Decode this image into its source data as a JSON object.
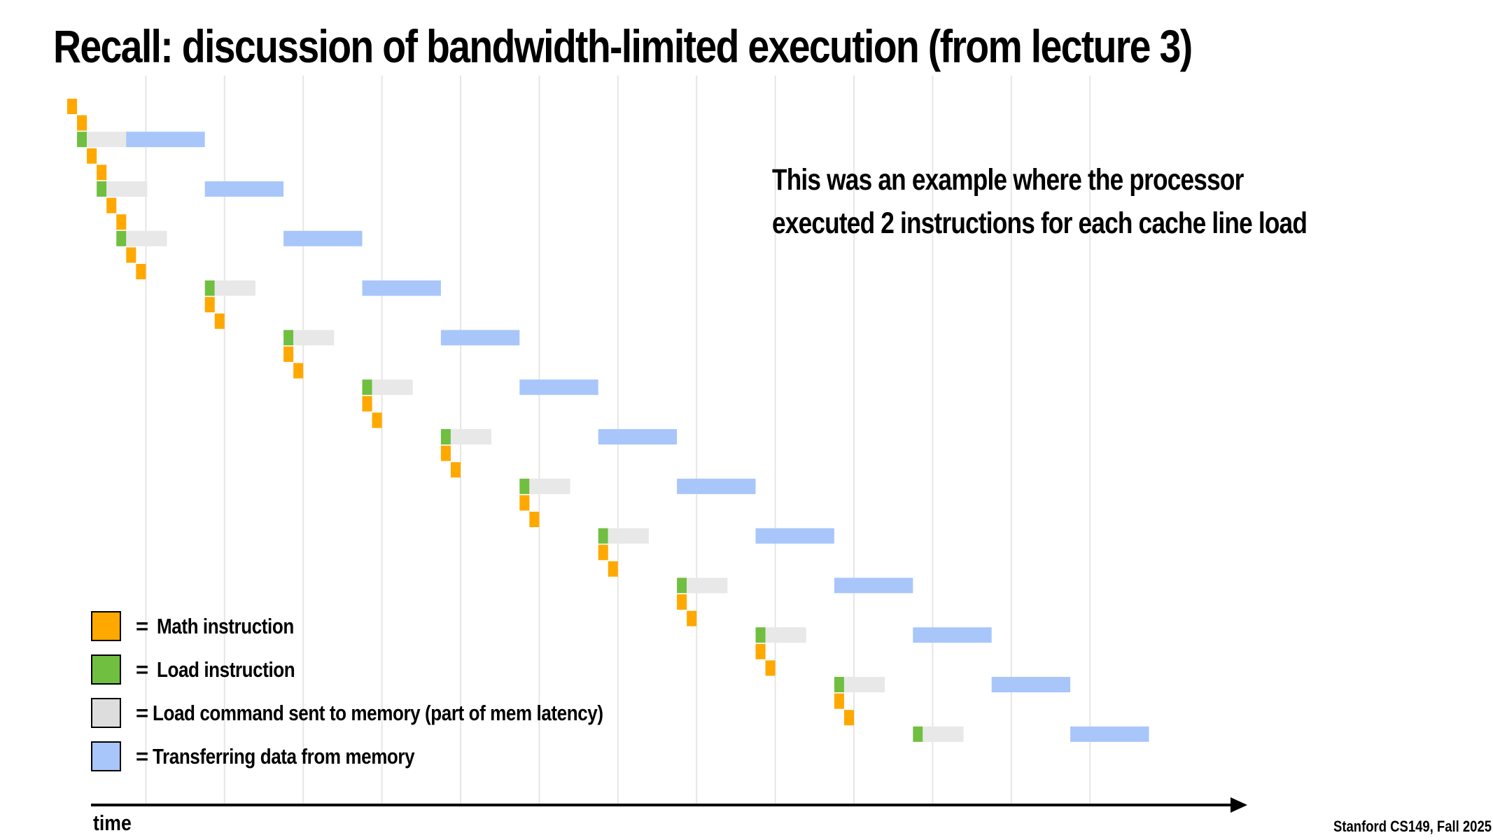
{
  "slide": {
    "title": "Recall: discussion of bandwidth-limited execution (from lecture 3)",
    "callout_line1": "This was an example where the processor",
    "callout_line2": "executed 2 instructions for each cache line load",
    "footer": "Stanford CS149, Fall 2025"
  },
  "legend": {
    "items": [
      {
        "name": "math",
        "label": "Math instruction",
        "color": "#ffa800",
        "eq": "="
      },
      {
        "name": "load",
        "label": "Load instruction",
        "color": "#70bf41",
        "eq": "="
      },
      {
        "name": "command",
        "label": "Load command sent to memory (part of mem latency)",
        "color": "#dddddd",
        "eq": "="
      },
      {
        "name": "transfer",
        "label": "Transferring data from memory",
        "color": "#a8c6fa",
        "eq": "="
      }
    ]
  },
  "timeline": {
    "axis_label": "time",
    "unit_note": "time measured in instruction issue slots; each memory transfer lasts 8 slots and transfers are serialized (bandwidth limited)",
    "instruction_slot": 1,
    "command_latency": 4,
    "transfer_duration": 8,
    "gridline_interval": 8,
    "colors": {
      "math": "#ffa800",
      "load": "#70bf41",
      "command": "#e8e8e8",
      "transfer": "#a8c6fa",
      "grid": "#e6e6e6",
      "axis": "#000000"
    },
    "rows": [
      {
        "type": "math",
        "start": 0
      },
      {
        "type": "math",
        "start": 1
      },
      {
        "type": "load",
        "start": 1,
        "command_start": 2,
        "transfer_start": 6
      },
      {
        "type": "math",
        "start": 2
      },
      {
        "type": "math",
        "start": 3
      },
      {
        "type": "load",
        "start": 3,
        "command_start": 4,
        "transfer_start": 14
      },
      {
        "type": "math",
        "start": 4
      },
      {
        "type": "math",
        "start": 5
      },
      {
        "type": "load",
        "start": 5,
        "command_start": 6,
        "transfer_start": 22
      },
      {
        "type": "math",
        "start": 6
      },
      {
        "type": "math",
        "start": 7
      },
      {
        "type": "load",
        "start": 14,
        "command_start": 15,
        "transfer_start": 30
      },
      {
        "type": "math",
        "start": 14
      },
      {
        "type": "math",
        "start": 15
      },
      {
        "type": "load",
        "start": 22,
        "command_start": 23,
        "transfer_start": 38
      },
      {
        "type": "math",
        "start": 22
      },
      {
        "type": "math",
        "start": 23
      },
      {
        "type": "load",
        "start": 30,
        "command_start": 31,
        "transfer_start": 46
      },
      {
        "type": "math",
        "start": 30
      },
      {
        "type": "math",
        "start": 31
      },
      {
        "type": "load",
        "start": 38,
        "command_start": 39,
        "transfer_start": 54
      },
      {
        "type": "math",
        "start": 38
      },
      {
        "type": "math",
        "start": 39
      },
      {
        "type": "load",
        "start": 46,
        "command_start": 47,
        "transfer_start": 62
      },
      {
        "type": "math",
        "start": 46
      },
      {
        "type": "math",
        "start": 47
      },
      {
        "type": "load",
        "start": 54,
        "command_start": 55,
        "transfer_start": 70
      },
      {
        "type": "math",
        "start": 54
      },
      {
        "type": "math",
        "start": 55
      },
      {
        "type": "load",
        "start": 62,
        "command_start": 63,
        "transfer_start": 78
      },
      {
        "type": "math",
        "start": 62
      },
      {
        "type": "math",
        "start": 63
      },
      {
        "type": "load",
        "start": 70,
        "command_start": 71,
        "transfer_start": 86
      },
      {
        "type": "math",
        "start": 70
      },
      {
        "type": "math",
        "start": 71
      },
      {
        "type": "load",
        "start": 78,
        "command_start": 79,
        "transfer_start": 94
      },
      {
        "type": "math",
        "start": 78
      },
      {
        "type": "math",
        "start": 79
      },
      {
        "type": "load",
        "start": 86,
        "command_start": 87,
        "transfer_start": 102
      }
    ]
  }
}
